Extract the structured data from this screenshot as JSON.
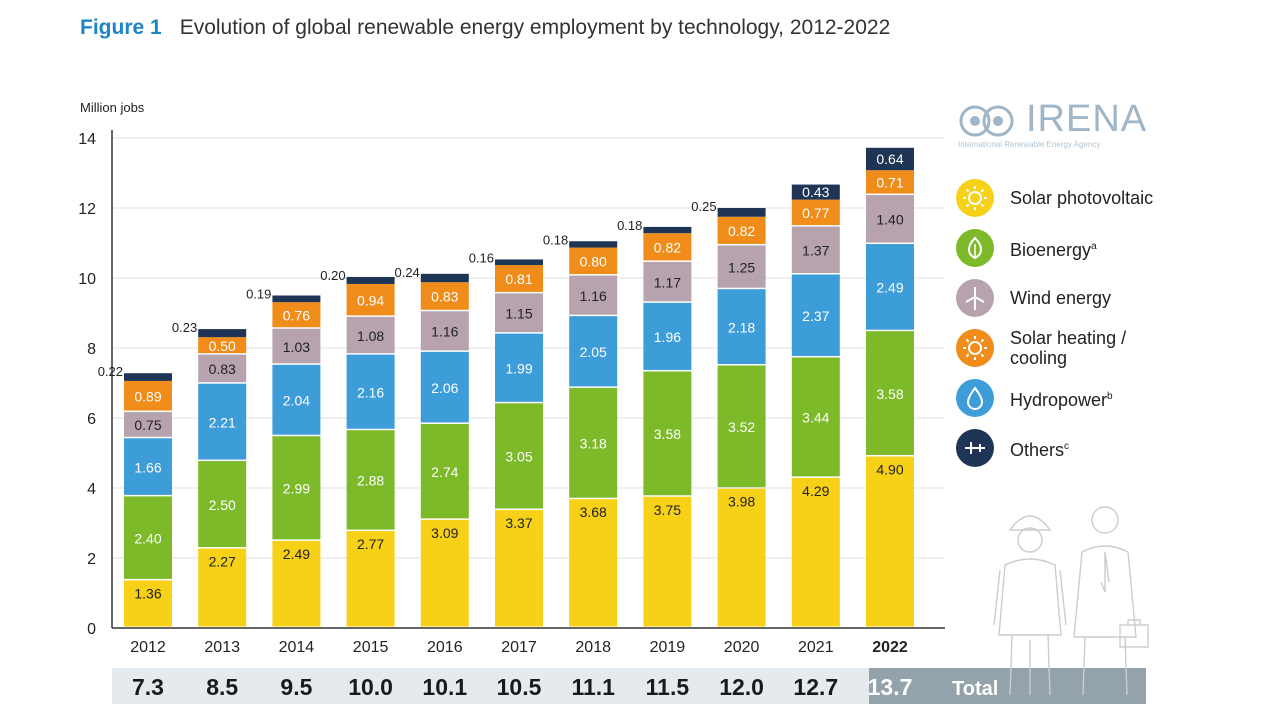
{
  "figure": {
    "label": "Figure 1",
    "title": "Evolution of global renewable energy employment by technology, 2012-2022"
  },
  "logo": {
    "name": "IRENA",
    "subtitle": "International Renewable Energy Agency"
  },
  "colors": {
    "solar_pv": "#f7d117",
    "bioenergy": "#7dba2a",
    "wind": "#b6a3ae",
    "solar_heating": "#f08c1a",
    "hydropower": "#3d9dd9",
    "others": "#1e3555",
    "total_bar": "#e4eaee",
    "total_highlight": "#94a3ab"
  },
  "chart_data": {
    "type": "bar",
    "stacked": true,
    "ylabel": "Million jobs",
    "ylim": [
      0,
      14
    ],
    "yticks": [
      0,
      2,
      4,
      6,
      8,
      10,
      12,
      14
    ],
    "grid": true,
    "categories": [
      "2012",
      "2013",
      "2014",
      "2015",
      "2016",
      "2017",
      "2018",
      "2019",
      "2020",
      "2021",
      "2022"
    ],
    "series": [
      {
        "key": "solar_pv",
        "name": "Solar photovoltaic",
        "values": [
          1.36,
          2.27,
          2.49,
          2.77,
          3.09,
          3.37,
          3.68,
          3.75,
          3.98,
          4.29,
          4.9
        ],
        "labels": [
          "1.36",
          "2.27",
          "2.49",
          "2.77",
          "3.09",
          "3.37",
          "3.68",
          "3.75",
          "3.98",
          "4.29",
          "4.90"
        ]
      },
      {
        "key": "bioenergy",
        "name": "Bioenergy",
        "values": [
          2.4,
          2.5,
          2.99,
          2.88,
          2.74,
          3.05,
          3.18,
          3.58,
          3.52,
          3.44,
          3.58
        ],
        "labels": [
          "2.40",
          "2.50",
          "2.99",
          "2.88",
          "2.74",
          "3.05",
          "3.18",
          "3.58",
          "3.52",
          "3.44",
          "3.58"
        ]
      },
      {
        "key": "hydropower",
        "name": "Hydropower",
        "values": [
          1.66,
          2.21,
          2.04,
          2.16,
          2.06,
          1.99,
          2.05,
          1.96,
          2.18,
          2.37,
          2.49
        ],
        "labels": [
          "1.66",
          "2.21",
          "2.04",
          "2.16",
          "2.06",
          "1.99",
          "2.05",
          "1.96",
          "2.18",
          "2.37",
          "2.49"
        ]
      },
      {
        "key": "wind",
        "name": "Wind energy",
        "values": [
          0.75,
          0.83,
          1.03,
          1.08,
          1.16,
          1.15,
          1.16,
          1.17,
          1.25,
          1.37,
          1.4
        ],
        "labels": [
          "0.75",
          "0.83",
          "1.03",
          "1.08",
          "1.16",
          "1.15",
          "1.16",
          "1.17",
          "1.25",
          "1.37",
          "1.40"
        ]
      },
      {
        "key": "solar_heating",
        "name": "Solar heating / cooling",
        "values": [
          0.89,
          0.5,
          0.76,
          0.94,
          0.83,
          0.81,
          0.8,
          0.82,
          0.82,
          0.77,
          0.71
        ],
        "labels": [
          "0.89",
          "0.50",
          "0.76",
          "0.94",
          "0.83",
          "0.81",
          "0.80",
          "0.82",
          "0.82",
          "0.77",
          "0.71"
        ]
      },
      {
        "key": "others",
        "name": "Others",
        "values": [
          0.22,
          0.23,
          0.19,
          0.2,
          0.24,
          0.16,
          0.18,
          0.18,
          0.25,
          0.43,
          0.64
        ],
        "labels": [
          "0.22",
          "0.23",
          "0.19",
          "0.20",
          "0.24",
          "0.16",
          "0.18",
          "0.18",
          "0.25",
          "0.43",
          "0.64"
        ]
      }
    ],
    "totals": [
      "7.3",
      "8.5",
      "9.5",
      "10.0",
      "10.1",
      "10.5",
      "11.1",
      "11.5",
      "12.0",
      "12.7",
      "13.7"
    ],
    "totals_label": "Total",
    "highlight_category": "2022"
  },
  "legend": [
    {
      "key": "solar_pv",
      "label": "Solar photovoltaic",
      "sup": "",
      "icon": "sun-icon"
    },
    {
      "key": "bioenergy",
      "label": "Bioenergy",
      "sup": "a",
      "icon": "leaf-icon"
    },
    {
      "key": "wind",
      "label": "Wind energy",
      "sup": "",
      "icon": "wind-turbine-icon"
    },
    {
      "key": "solar_heating",
      "label": "Solar heating / cooling",
      "sup": "",
      "icon": "sun-icon"
    },
    {
      "key": "hydropower",
      "label": "Hydropower",
      "sup": "b",
      "icon": "water-drop-icon"
    },
    {
      "key": "others",
      "label": "Others",
      "sup": "c",
      "icon": "plus-icon"
    }
  ]
}
